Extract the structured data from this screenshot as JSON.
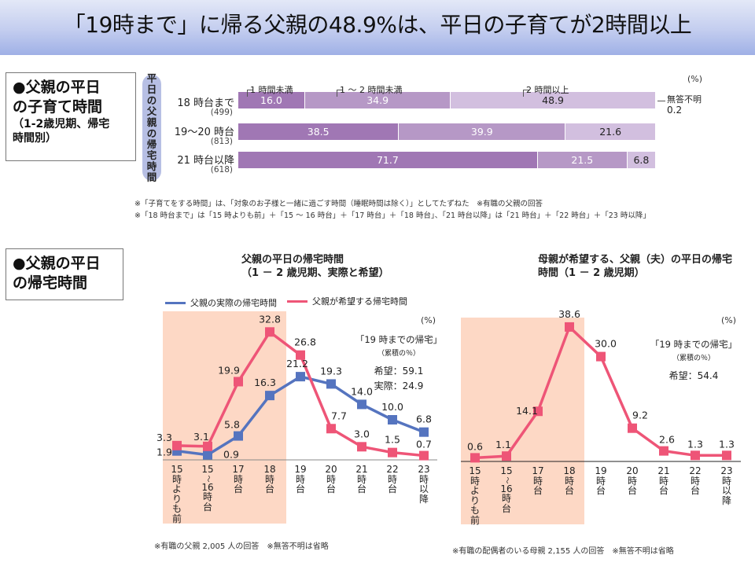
{
  "header": {
    "title": "「19時まで」に帰る父親の48.9%は、平日の子育てが2時間以上"
  },
  "section1": {
    "box_line1": "●父親の平日",
    "box_line2": "の子育て時間",
    "box_line3": "（1-2歳児期、帰宅",
    "box_line4": "時間別）",
    "vertical_label": [
      "平",
      "日",
      "の",
      "父",
      "親",
      "の",
      "帰",
      "宅",
      "時",
      "間"
    ]
  },
  "section2": {
    "box_line1": "●父親の平日",
    "box_line2": "の帰宅時間"
  },
  "notes": {
    "top1": "※「子育てをする時間」は、「対象のお子様と一緒に過ごす時間（睡眠時間は除く）」としてたずねた　※有職の父親の回答",
    "top2": "※「18 時台まで」は「15 時よりも前」＋「15 ～ 16 時台」＋「17 時台」＋「18 時台」、「21 時台以降」は「21 時台」＋「22 時台」＋「23 時以降」",
    "left_footer": "※有職の父親 2,005 人の回答　※無答不明は省略",
    "right_footer": "※有職の配偶者のいる母親 2,155 人の回答　※無答不明は省略"
  },
  "chart_data": [
    {
      "type": "bar",
      "orientation": "horizontal-stacked",
      "title": "父親の平日の子育て時間（1-2歳児期、帰宅時間別）",
      "unit": "(%)",
      "categories": [
        "18 時台まで",
        "19～20 時台",
        "21 時台以降"
      ],
      "category_n": [
        "(499)",
        "(813)",
        "(618)"
      ],
      "series": [
        {
          "name": "1 時間未満",
          "values": [
            16.0,
            38.5,
            71.7
          ],
          "color": "#a077b4"
        },
        {
          "name": "1 ～ 2 時間未満",
          "values": [
            34.9,
            39.9,
            21.5
          ],
          "color": "#b698c6"
        },
        {
          "name": "2 時間以上",
          "values": [
            48.9,
            21.6,
            6.8
          ],
          "color": "#d2bfdf"
        }
      ],
      "no_answer": {
        "label": "無答不明",
        "value": "0.2"
      },
      "xlim": [
        0,
        100
      ]
    },
    {
      "type": "line",
      "title_line1": "父親の平日の帰宅時間",
      "title_line2": "（1 － 2 歳児期、実際と希望）",
      "unit": "(%)",
      "categories": [
        [
          "15",
          "時",
          "よ",
          "り",
          "も",
          "前"
        ],
        [
          "15",
          "～",
          "16",
          "時",
          "台"
        ],
        [
          "17",
          "時",
          "台"
        ],
        [
          "18",
          "時",
          "台"
        ],
        [
          "19",
          "時",
          "台"
        ],
        [
          "20",
          "時",
          "台"
        ],
        [
          "21",
          "時",
          "台"
        ],
        [
          "22",
          "時",
          "台"
        ],
        [
          "23",
          "時",
          "以",
          "降"
        ]
      ],
      "series": [
        {
          "name": "父親の実際の帰宅時間",
          "values": [
            1.9,
            0.9,
            5.8,
            16.3,
            21.2,
            19.3,
            14.0,
            10.0,
            6.8
          ],
          "labels": [
            "1.9",
            "0.9",
            "5.8",
            "16.3",
            "21.2",
            "19.3",
            "14.0",
            "10.0",
            "6.8"
          ],
          "color": "#5574bf"
        },
        {
          "name": "父親が希望する帰宅時間",
          "values": [
            3.3,
            3.1,
            19.9,
            32.8,
            26.8,
            7.7,
            3.0,
            1.5,
            0.7
          ],
          "labels": [
            "3.3",
            "3.1",
            "19.9",
            "32.8",
            "26.8",
            "7.7",
            "3.0",
            "1.5",
            "0.7"
          ],
          "color": "#ee5577"
        }
      ],
      "shaded_range": [
        "15時よりも前",
        "18時台"
      ],
      "cumulative": {
        "title": "「19 時までの帰宅」",
        "sub": "（累積の％）",
        "lines": [
          "希望：59.1",
          "実際：24.9"
        ]
      },
      "ylim": [
        0,
        35
      ]
    },
    {
      "type": "line",
      "title_line1": "母親が希望する、父親（夫）の平日の帰宅",
      "title_line2": "時間（1 － 2 歳児期）",
      "unit": "(%)",
      "categories": [
        [
          "15",
          "時",
          "よ",
          "り",
          "も",
          "前"
        ],
        [
          "15",
          "～",
          "16",
          "時",
          "台"
        ],
        [
          "17",
          "時",
          "台"
        ],
        [
          "18",
          "時",
          "台"
        ],
        [
          "19",
          "時",
          "台"
        ],
        [
          "20",
          "時",
          "台"
        ],
        [
          "21",
          "時",
          "台"
        ],
        [
          "22",
          "時",
          "台"
        ],
        [
          "23",
          "時",
          "以",
          "降"
        ]
      ],
      "series": [
        {
          "name": "母親が希望する父親の帰宅時間",
          "values": [
            0.6,
            1.1,
            14.1,
            38.6,
            30.0,
            9.2,
            2.6,
            1.3,
            1.3
          ],
          "labels": [
            "0.6",
            "1.1",
            "14.1",
            "38.6",
            "30.0",
            "9.2",
            "2.6",
            "1.3",
            "1.3"
          ],
          "color": "#ee5577"
        }
      ],
      "shaded_range": [
        "15時よりも前",
        "18時台"
      ],
      "cumulative": {
        "title": "「19 時までの帰宅」",
        "sub": "（累積の％）",
        "lines": [
          "希望：54.4"
        ]
      },
      "ylim": [
        0,
        40
      ]
    }
  ]
}
